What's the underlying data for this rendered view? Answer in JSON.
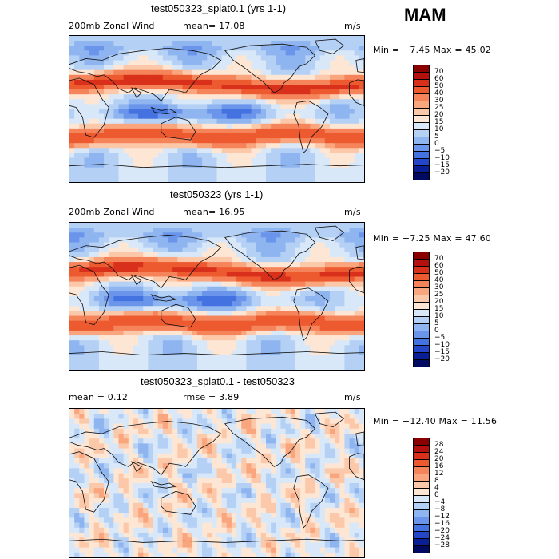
{
  "season": "MAM",
  "panels": [
    {
      "title": "test050323_splat0.1 (yrs 1-1)",
      "left_text": "200mb Zonal Wind",
      "mean_text": "mean=   17.08",
      "units": "m/s",
      "minmax": "Min =  −7.45 Max =  45.02",
      "labels": [
        "70",
        "60",
        "50",
        "40",
        "30",
        "25",
        "20",
        "15",
        "10",
        "5",
        "0",
        "−5",
        "−10",
        "−15",
        "−20"
      ],
      "colors": [
        "#8a0000",
        "#b41010",
        "#d8301a",
        "#ee5a30",
        "#f5845a",
        "#f9a67e",
        "#fcc8aa",
        "#fde6d4",
        "#d8e8f8",
        "#b5d0f5",
        "#8fb5f0",
        "#6a95ea",
        "#4472e0",
        "#2546c8",
        "#0a1e96",
        "#000a60"
      ],
      "variant": "a"
    },
    {
      "title": "test050323 (yrs 1-1)",
      "left_text": "200mb Zonal Wind",
      "mean_text": "mean=   16.95",
      "units": "m/s",
      "minmax": "Min =  −7.25 Max =  47.60",
      "labels": [
        "70",
        "60",
        "50",
        "40",
        "30",
        "25",
        "20",
        "15",
        "10",
        "5",
        "0",
        "−5",
        "−10",
        "−15",
        "−20"
      ],
      "colors": [
        "#8a0000",
        "#b41010",
        "#d8301a",
        "#ee5a30",
        "#f5845a",
        "#f9a67e",
        "#fcc8aa",
        "#fde6d4",
        "#d8e8f8",
        "#b5d0f5",
        "#8fb5f0",
        "#6a95ea",
        "#4472e0",
        "#2546c8",
        "#0a1e96",
        "#000a60"
      ],
      "variant": "b"
    },
    {
      "title": "test050323_splat0.1 - test050323",
      "left_text": "mean =    0.12",
      "mean_text": "rmse =    3.89",
      "units": "m/s",
      "minmax": "Min = −12.40 Max =  11.56",
      "labels": [
        "28",
        "24",
        "20",
        "16",
        "12",
        "8",
        "4",
        "0",
        "−4",
        "−8",
        "−12",
        "−16",
        "−20",
        "−24",
        "−28"
      ],
      "colors": [
        "#8a0000",
        "#b41010",
        "#d8301a",
        "#ee5a30",
        "#f5845a",
        "#f9a67e",
        "#fcc8aa",
        "#fde6d4",
        "#d8e8f8",
        "#b5d0f5",
        "#8fb5f0",
        "#6a95ea",
        "#4472e0",
        "#2546c8",
        "#0a1e96",
        "#000a60"
      ],
      "variant": "diff"
    }
  ],
  "chart_data": {
    "type": "heatmap",
    "title": "MAM",
    "variable": "200mb Zonal Wind",
    "units": "m/s",
    "maps": [
      {
        "name": "test050323_splat0.1 (yrs 1-1)",
        "mean": 17.08,
        "min": -7.45,
        "max": 45.02,
        "levels": [
          -20,
          -15,
          -10,
          -5,
          0,
          5,
          10,
          15,
          20,
          25,
          30,
          40,
          50,
          60,
          70
        ]
      },
      {
        "name": "test050323 (yrs 1-1)",
        "mean": 16.95,
        "min": -7.25,
        "max": 47.6,
        "levels": [
          -20,
          -15,
          -10,
          -5,
          0,
          5,
          10,
          15,
          20,
          25,
          30,
          40,
          50,
          60,
          70
        ]
      },
      {
        "name": "test050323_splat0.1 - test050323",
        "mean": 0.12,
        "rmse": 3.89,
        "min": -12.4,
        "max": 11.56,
        "levels": [
          -28,
          -24,
          -20,
          -16,
          -12,
          -8,
          -4,
          0,
          4,
          8,
          12,
          16,
          20,
          24,
          28
        ]
      }
    ]
  }
}
